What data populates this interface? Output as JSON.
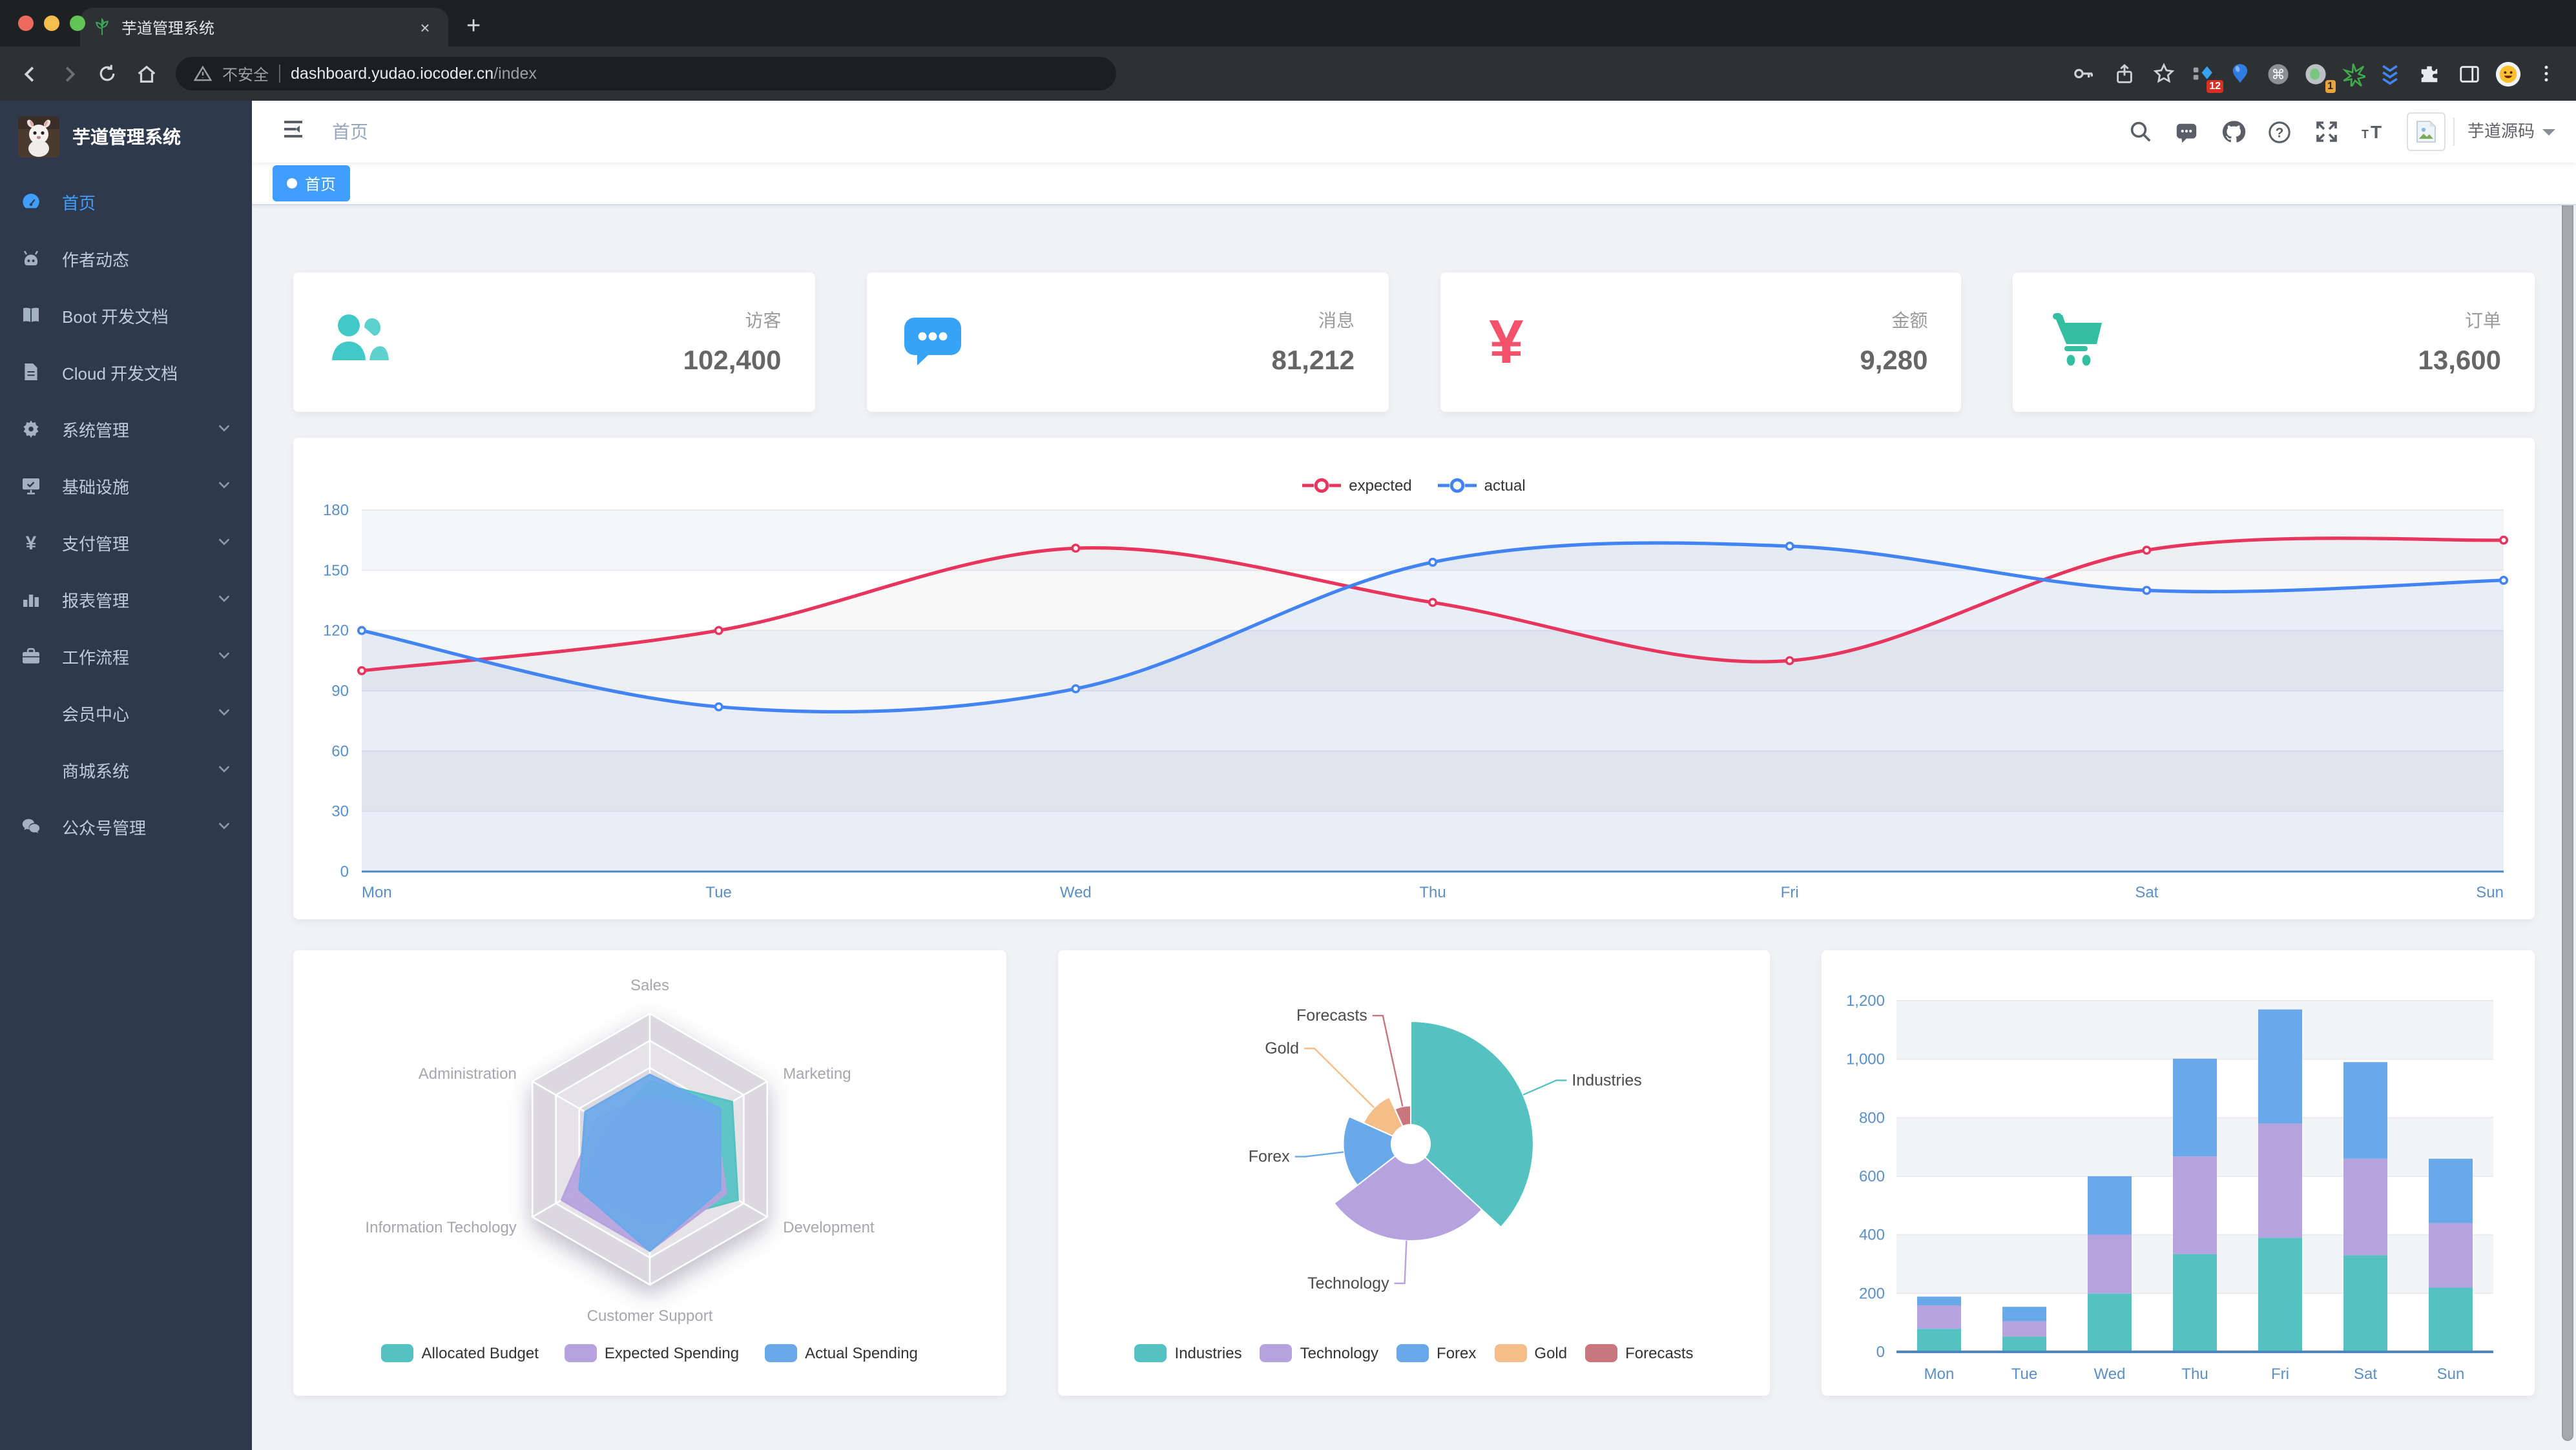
{
  "browser": {
    "tab_title": "芋道管理系统",
    "tab_close": "×",
    "new_tab": "+",
    "security_label": "不安全",
    "url_host": "dashboard.yudao.iocoder.cn",
    "url_path": "/index",
    "traffic_colors": [
      "#ed6a5e",
      "#f4bf4f",
      "#61c454"
    ],
    "extension_badges": {
      "grid_diamond": "12",
      "record": "1"
    }
  },
  "sidebar": {
    "logo_title": "芋道管理系统",
    "items": [
      {
        "label": "首页",
        "icon": "dashboard-icon",
        "active": true,
        "arrow": false
      },
      {
        "label": "作者动态",
        "icon": "people-icon",
        "active": false,
        "arrow": false
      },
      {
        "label": "Boot 开发文档",
        "icon": "book-icon",
        "active": false,
        "arrow": false
      },
      {
        "label": "Cloud 开发文档",
        "icon": "document-icon",
        "active": false,
        "arrow": false
      },
      {
        "label": "系统管理",
        "icon": "gear-icon",
        "active": false,
        "arrow": true
      },
      {
        "label": "基础设施",
        "icon": "monitor-icon",
        "active": false,
        "arrow": true
      },
      {
        "label": "支付管理",
        "icon": "yen-icon",
        "active": false,
        "arrow": true
      },
      {
        "label": "报表管理",
        "icon": "bar-chart-icon",
        "active": false,
        "arrow": true
      },
      {
        "label": "工作流程",
        "icon": "briefcase-icon",
        "active": false,
        "arrow": true
      },
      {
        "label": "会员中心",
        "icon": null,
        "active": false,
        "arrow": true
      },
      {
        "label": "商城系统",
        "icon": null,
        "active": false,
        "arrow": true
      },
      {
        "label": "公众号管理",
        "icon": "wechat-icon",
        "active": false,
        "arrow": true
      }
    ]
  },
  "navbar": {
    "breadcrumb": "首页",
    "username": "芋道源码"
  },
  "tags": [
    {
      "label": "首页",
      "active": true
    }
  ],
  "stats": [
    {
      "label": "访客",
      "value": "102,400",
      "icon": "people-group-icon",
      "color": "#40c9c6"
    },
    {
      "label": "消息",
      "value": "81,212",
      "icon": "message-icon",
      "color": "#36a3f7"
    },
    {
      "label": "金额",
      "value": "9,280",
      "icon": "yen-icon",
      "color": "#f4516c"
    },
    {
      "label": "订单",
      "value": "13,600",
      "icon": "cart-icon",
      "color": "#34bfa3"
    }
  ],
  "chart_data": [
    {
      "type": "line",
      "name": "weekly-expected-vs-actual",
      "x": [
        "Mon",
        "Tue",
        "Wed",
        "Thu",
        "Fri",
        "Sat",
        "Sun"
      ],
      "series": [
        {
          "name": "expected",
          "color": "#e8355e",
          "values": [
            100,
            120,
            161,
            134,
            105,
            160,
            165
          ]
        },
        {
          "name": "actual",
          "color": "#4284f4",
          "values": [
            120,
            82,
            91,
            154,
            162,
            140,
            145
          ]
        }
      ],
      "ylim": [
        0,
        180
      ],
      "yticks": [
        0,
        30,
        60,
        90,
        120,
        150,
        180
      ],
      "legend_position": "top",
      "grid": true
    },
    {
      "type": "radar",
      "name": "budget-radar",
      "indicators": [
        {
          "name": "Sales",
          "max": 10000
        },
        {
          "name": "Administration",
          "max": 20000
        },
        {
          "name": "Information Techology",
          "max": 20000
        },
        {
          "name": "Customer Support",
          "max": 20000
        },
        {
          "name": "Development",
          "max": 20000
        },
        {
          "name": "Marketing",
          "max": 20000
        }
      ],
      "series": [
        {
          "name": "Allocated Budget",
          "color": "#55c2c2",
          "values": [
            5000,
            7000,
            12000,
            11000,
            15000,
            14000
          ]
        },
        {
          "name": "Expected Spending",
          "color": "#b6a2de",
          "values": [
            4000,
            9000,
            15000,
            15000,
            13000,
            11000
          ]
        },
        {
          "name": "Actual Spending",
          "color": "#6aa9e9",
          "values": [
            5500,
            11000,
            12000,
            15000,
            12000,
            12000
          ]
        }
      ],
      "levels": 5,
      "legend_position": "bottom"
    },
    {
      "type": "pie",
      "name": "weekly-rose-pie",
      "rose": true,
      "slices": [
        {
          "name": "Industries",
          "value": 320,
          "color": "#55c2c2"
        },
        {
          "name": "Technology",
          "value": 240,
          "color": "#b6a2de"
        },
        {
          "name": "Forex",
          "value": 149,
          "color": "#6aa9e9"
        },
        {
          "name": "Gold",
          "value": 100,
          "color": "#f5bd87"
        },
        {
          "name": "Forecasts",
          "value": 59,
          "color": "#c9767c"
        }
      ],
      "inner_radius": 15,
      "outer_radius": 95,
      "legend_position": "bottom"
    },
    {
      "type": "bar",
      "name": "weekly-stacked-bar",
      "stacked": true,
      "categories": [
        "Mon",
        "Tue",
        "Wed",
        "Thu",
        "Fri",
        "Sat",
        "Sun"
      ],
      "series": [
        {
          "color": "#55c2c2",
          "values": [
            79,
            52,
            200,
            334,
            390,
            330,
            220
          ]
        },
        {
          "color": "#b6a2de",
          "values": [
            80,
            52,
            200,
            334,
            390,
            330,
            220
          ]
        },
        {
          "color": "#6aa9e9",
          "values": [
            30,
            50,
            200,
            334,
            390,
            330,
            220
          ]
        }
      ],
      "ylim": [
        0,
        1200
      ],
      "yticks": [
        0,
        200,
        400,
        600,
        800,
        1000,
        1200
      ]
    }
  ],
  "colors": {
    "accent_blue": "#409eff",
    "sidebar_bg": "#2e3a4b",
    "sidebar_text": "#bfcbd9",
    "content_bg": "#f0f2f5",
    "axis_label": "#5b8fc8",
    "axis_line": "#4e86c2"
  }
}
